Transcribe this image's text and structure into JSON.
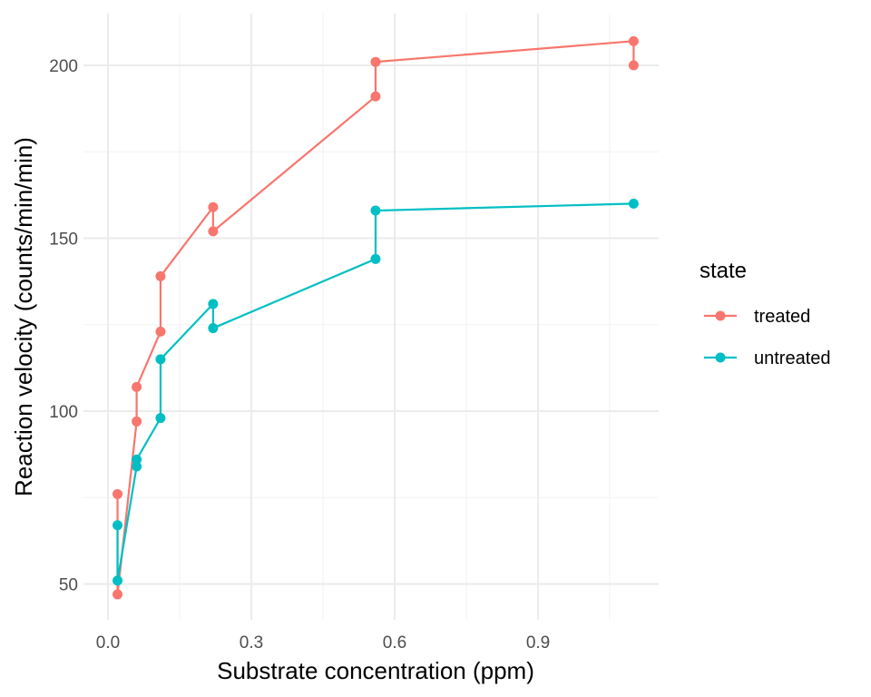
{
  "chart_data": {
    "type": "line",
    "title": "",
    "xlabel": "Substrate concentration (ppm)",
    "ylabel": "Reaction velocity (counts/min/min)",
    "xlim": [
      -0.05,
      1.15
    ],
    "ylim": [
      40,
      215
    ],
    "x_ticks": [
      0.0,
      0.3,
      0.6,
      0.9
    ],
    "x_tick_labels": [
      "0.0",
      "0.3",
      "0.6",
      "0.9"
    ],
    "y_ticks": [
      50,
      100,
      150,
      200
    ],
    "y_tick_labels": [
      "50",
      "100",
      "150",
      "200"
    ],
    "grid": true,
    "legend": {
      "title": "state",
      "placement": "right"
    },
    "series": [
      {
        "name": "treated",
        "color": "#F8766D",
        "x": [
          0.02,
          0.02,
          0.06,
          0.06,
          0.11,
          0.11,
          0.22,
          0.22,
          0.56,
          0.56,
          1.1,
          1.1
        ],
        "y": [
          76,
          47,
          97,
          107,
          123,
          139,
          159,
          152,
          191,
          201,
          207,
          200
        ]
      },
      {
        "name": "untreated",
        "color": "#00BFC4",
        "x": [
          0.02,
          0.02,
          0.06,
          0.06,
          0.11,
          0.11,
          0.22,
          0.22,
          0.56,
          0.56,
          1.1
        ],
        "y": [
          67,
          51,
          84,
          86,
          98,
          115,
          131,
          124,
          144,
          158,
          160
        ]
      }
    ]
  }
}
